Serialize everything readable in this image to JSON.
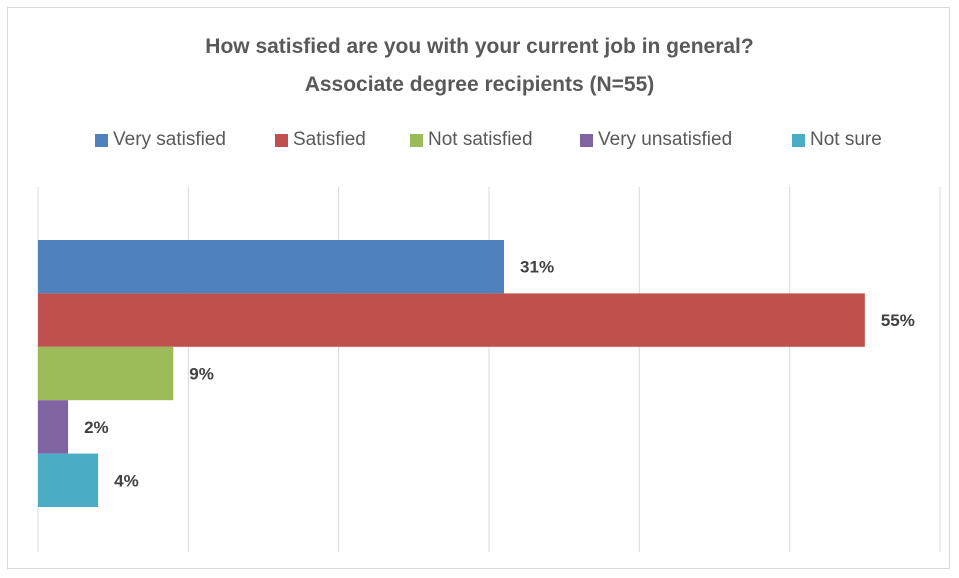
{
  "chart_data": {
    "type": "bar",
    "orientation": "horizontal",
    "title": "How satisfied are you with your current job in general?",
    "subtitle": "Associate degree recipients (N=55)",
    "xlabel": "",
    "ylabel": "",
    "xlim": [
      0,
      60
    ],
    "grid": true,
    "legend_position": "top",
    "series": [
      {
        "name": "Very satisfied",
        "values": [
          31
        ],
        "label": "31%",
        "color": "#4F81BD"
      },
      {
        "name": "Satisfied",
        "values": [
          55
        ],
        "label": "55%",
        "color": "#C0504D"
      },
      {
        "name": "Not satisfied",
        "values": [
          9
        ],
        "label": "9%",
        "color": "#9BBB59"
      },
      {
        "name": "Very unsatisfied",
        "values": [
          2
        ],
        "label": "2%",
        "color": "#8064A2"
      },
      {
        "name": "Not sure",
        "values": [
          4
        ],
        "label": "4%",
        "color": "#4BACC6"
      }
    ]
  }
}
